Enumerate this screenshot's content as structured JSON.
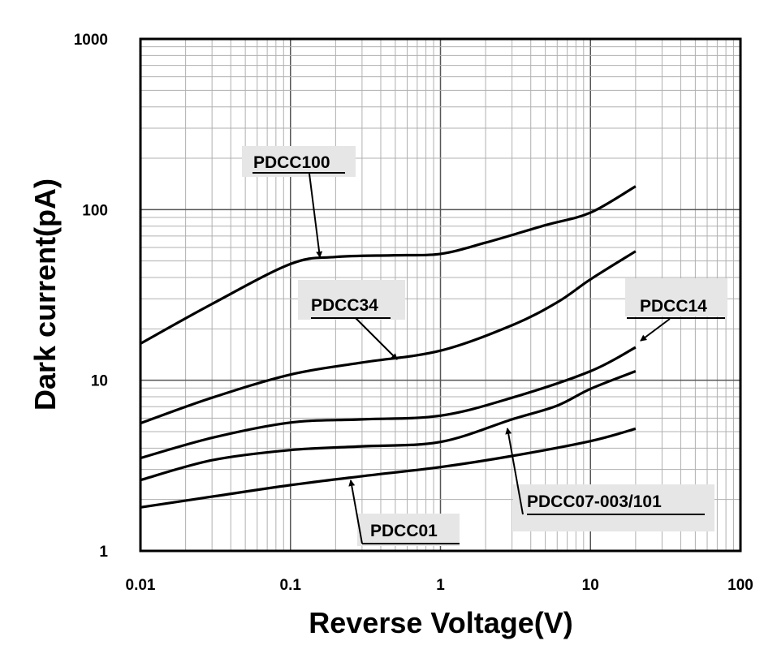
{
  "chart_data": {
    "type": "line",
    "title": "",
    "xlabel": "Reverse Voltage(V)",
    "ylabel": "Dark current(pA)",
    "xscale": "log",
    "yscale": "log",
    "xlim": [
      0.01,
      100
    ],
    "ylim": [
      1,
      1000
    ],
    "grid": true,
    "x_ticks": [
      "0.01",
      "0.1",
      "1",
      "10",
      "100"
    ],
    "y_ticks": [
      "1",
      "10",
      "100",
      "1000"
    ],
    "line_color": "#000000",
    "grid_color": "#b0b0b0",
    "label_box_color": "#e6e6e6",
    "series": [
      {
        "name": "PDCC100",
        "x": [
          0.01,
          0.03,
          0.1,
          0.2,
          0.5,
          1,
          2,
          5,
          10,
          20
        ],
        "y": [
          16.4,
          28,
          48,
          52.8,
          54,
          55,
          64,
          81,
          96,
          137
        ]
      },
      {
        "name": "PDCC34",
        "x": [
          0.01,
          0.03,
          0.1,
          0.3,
          1,
          3,
          6,
          10,
          20
        ],
        "y": [
          5.6,
          7.9,
          10.8,
          12.7,
          14.9,
          21,
          28.6,
          39,
          57
        ]
      },
      {
        "name": "PDCC14",
        "x": [
          0.01,
          0.03,
          0.1,
          0.3,
          1,
          3,
          10,
          20
        ],
        "y": [
          3.5,
          4.6,
          5.65,
          5.9,
          6.2,
          7.9,
          11.3,
          15.6
        ]
      },
      {
        "name": "PDCC07-003/101",
        "x": [
          0.01,
          0.03,
          0.1,
          0.3,
          1,
          3,
          6,
          10,
          20
        ],
        "y": [
          2.6,
          3.4,
          3.9,
          4.1,
          4.35,
          5.9,
          7.1,
          8.9,
          11.3
        ]
      },
      {
        "name": "PDCC01",
        "x": [
          0.01,
          0.03,
          0.1,
          0.3,
          1,
          3,
          10,
          20
        ],
        "y": [
          1.8,
          2.08,
          2.43,
          2.74,
          3.1,
          3.6,
          4.4,
          5.2
        ]
      }
    ]
  }
}
